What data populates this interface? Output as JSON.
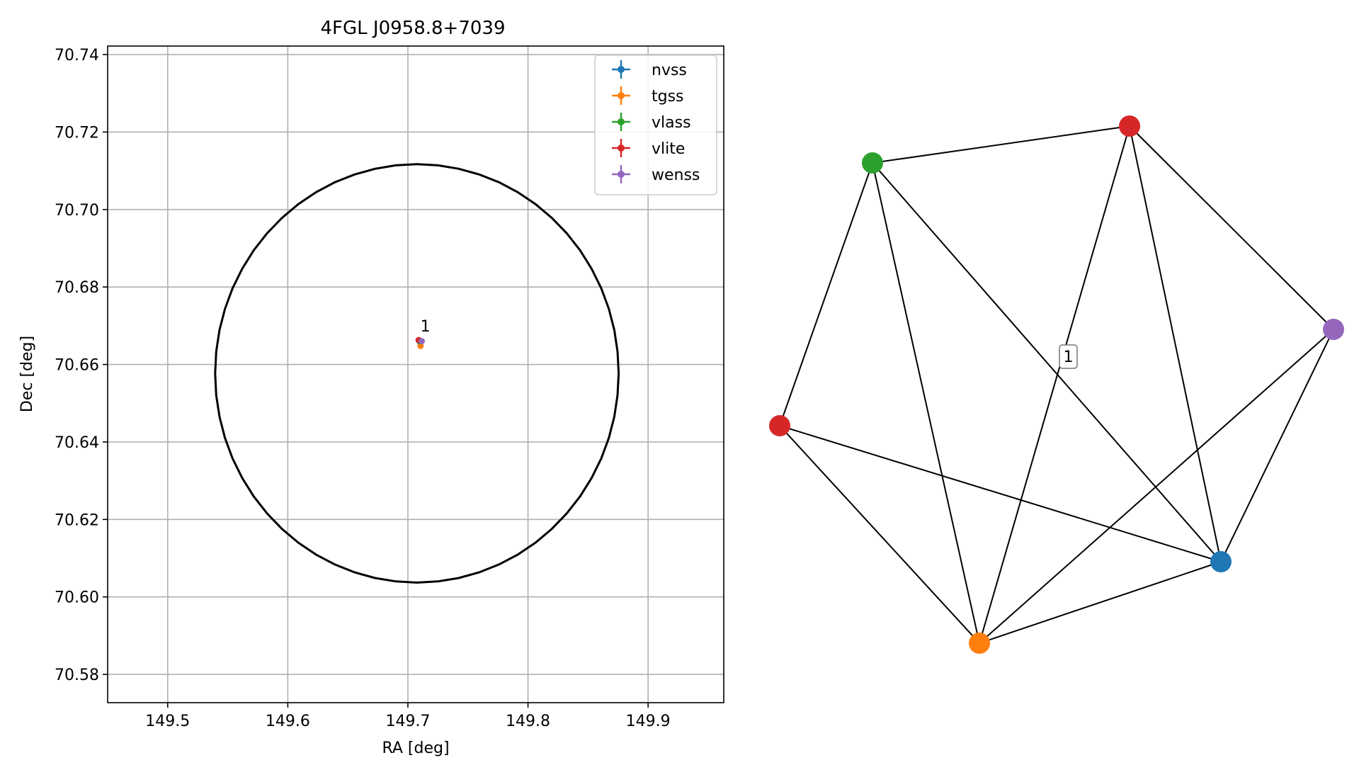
{
  "chart_data": [
    {
      "type": "scatter",
      "title": "4FGL J0958.8+7039",
      "xlabel": "RA [deg]",
      "ylabel": "Dec [deg]",
      "xlim": [
        149.45,
        149.963
      ],
      "ylim": [
        70.5727,
        70.7422
      ],
      "xticks": [
        149.5,
        149.6,
        149.7,
        149.8,
        149.9
      ],
      "xtick_labels": [
        "149.5",
        "149.6",
        "149.7",
        "149.8",
        "149.9"
      ],
      "yticks": [
        70.58,
        70.6,
        70.62,
        70.64,
        70.66,
        70.68,
        70.7,
        70.72,
        70.74
      ],
      "ytick_labels": [
        "70.58",
        "70.60",
        "70.62",
        "70.64",
        "70.66",
        "70.68",
        "70.70",
        "70.72",
        "70.74"
      ],
      "grid": true,
      "legend_position": "top-right",
      "ellipse": {
        "center": [
          149.7075,
          70.6577
        ],
        "semi_axis_ra_deg": 0.168,
        "semi_axis_dec_deg": 0.054,
        "color": "#000000"
      },
      "series": [
        {
          "name": "nvss",
          "color": "#1f77b4",
          "x": [
            149.7095
          ],
          "y": [
            70.666
          ]
        },
        {
          "name": "tgss",
          "color": "#ff7f0e",
          "x": [
            149.7105
          ],
          "y": [
            70.6648
          ]
        },
        {
          "name": "vlass",
          "color": "#2ca02c",
          "x": [
            149.71
          ],
          "y": [
            70.666
          ]
        },
        {
          "name": "vlite",
          "color": "#d62728",
          "x": [
            149.709
          ],
          "y": [
            70.6663
          ]
        },
        {
          "name": "wenss",
          "color": "#9467bd",
          "x": [
            149.7115
          ],
          "y": [
            70.666
          ]
        }
      ],
      "annotations": [
        {
          "text": "1",
          "x": 149.7145,
          "y": 70.6685
        }
      ]
    },
    {
      "type": "graph",
      "nodes": [
        {
          "id": "red-top",
          "color": "#d62728"
        },
        {
          "id": "green",
          "color": "#2ca02c"
        },
        {
          "id": "purple",
          "color": "#9467bd"
        },
        {
          "id": "red-left",
          "color": "#d62728"
        },
        {
          "id": "blue",
          "color": "#1f77b4"
        },
        {
          "id": "orange",
          "color": "#ff7f0e"
        }
      ],
      "edges": [
        [
          "green",
          "red-top"
        ],
        [
          "green",
          "red-left"
        ],
        [
          "green",
          "orange"
        ],
        [
          "green",
          "blue"
        ],
        [
          "red-top",
          "purple"
        ],
        [
          "red-top",
          "orange"
        ],
        [
          "red-top",
          "blue"
        ],
        [
          "purple",
          "orange"
        ],
        [
          "purple",
          "blue"
        ],
        [
          "red-left",
          "orange"
        ],
        [
          "red-left",
          "blue"
        ],
        [
          "orange",
          "blue"
        ]
      ],
      "center_label": "1"
    }
  ]
}
